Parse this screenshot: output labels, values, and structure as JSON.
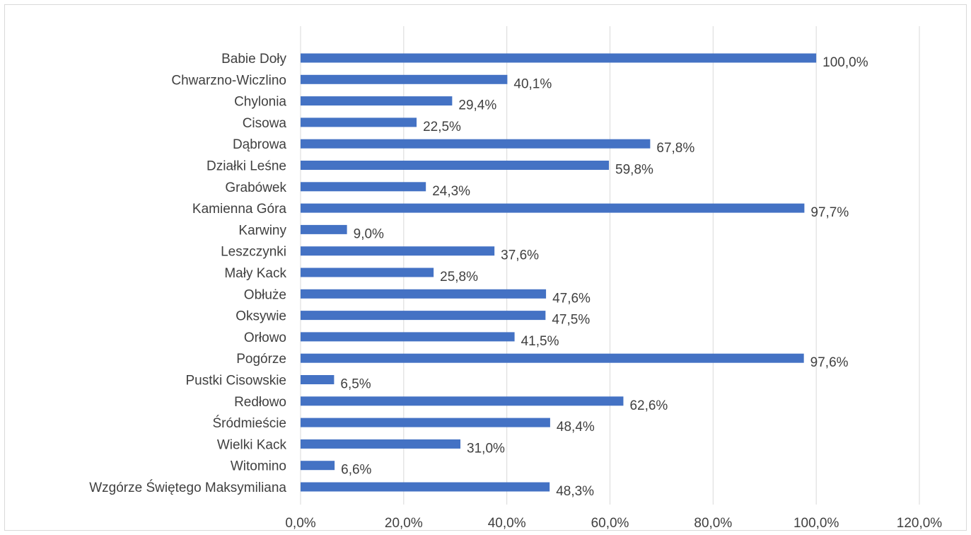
{
  "chart_data": {
    "type": "bar",
    "orientation": "horizontal",
    "title": "",
    "xlabel": "",
    "ylabel": "",
    "categories": [
      "Babie Doły",
      "Chwarzno-Wiczlino",
      "Chylonia",
      "Cisowa",
      "Dąbrowa",
      "Działki Leśne",
      "Grabówek",
      "Kamienna Góra",
      "Karwiny",
      "Leszczynki",
      "Mały Kack",
      "Obłuże",
      "Oksywie",
      "Orłowo",
      "Pogórze",
      "Pustki Cisowskie",
      "Redłowo",
      "Śródmieście",
      "Wielki Kack",
      "Witomino",
      "Wzgórze Świętego Maksymiliana"
    ],
    "series": [
      {
        "values": [
          100.0,
          40.1,
          29.4,
          22.5,
          67.8,
          59.8,
          24.3,
          97.7,
          9.0,
          37.6,
          25.8,
          47.6,
          47.5,
          41.5,
          97.6,
          6.5,
          62.6,
          48.4,
          31.0,
          6.6,
          48.3
        ],
        "data_labels": [
          "100,0%",
          "40,1%",
          "29,4%",
          "22,5%",
          "67,8%",
          "59,8%",
          "24,3%",
          "97,7%",
          "9,0%",
          "37,6%",
          "25,8%",
          "47,6%",
          "47,5%",
          "41,5%",
          "97,6%",
          "6,5%",
          "62,6%",
          "48,4%",
          "31,0%",
          "6,6%",
          "48,3%"
        ],
        "color": "#4472c4"
      }
    ],
    "xlim": [
      0,
      120
    ],
    "x_ticks": [
      0,
      20,
      40,
      60,
      80,
      100,
      120
    ],
    "x_tick_labels": [
      "0,0%",
      "20,0%",
      "40,0%",
      "60,0%",
      "80,0%",
      "100,0%",
      "120,0%"
    ],
    "grid": "vertical",
    "legend": "none",
    "gridline_color": "#d9d9d9",
    "text_color": "#404040"
  }
}
